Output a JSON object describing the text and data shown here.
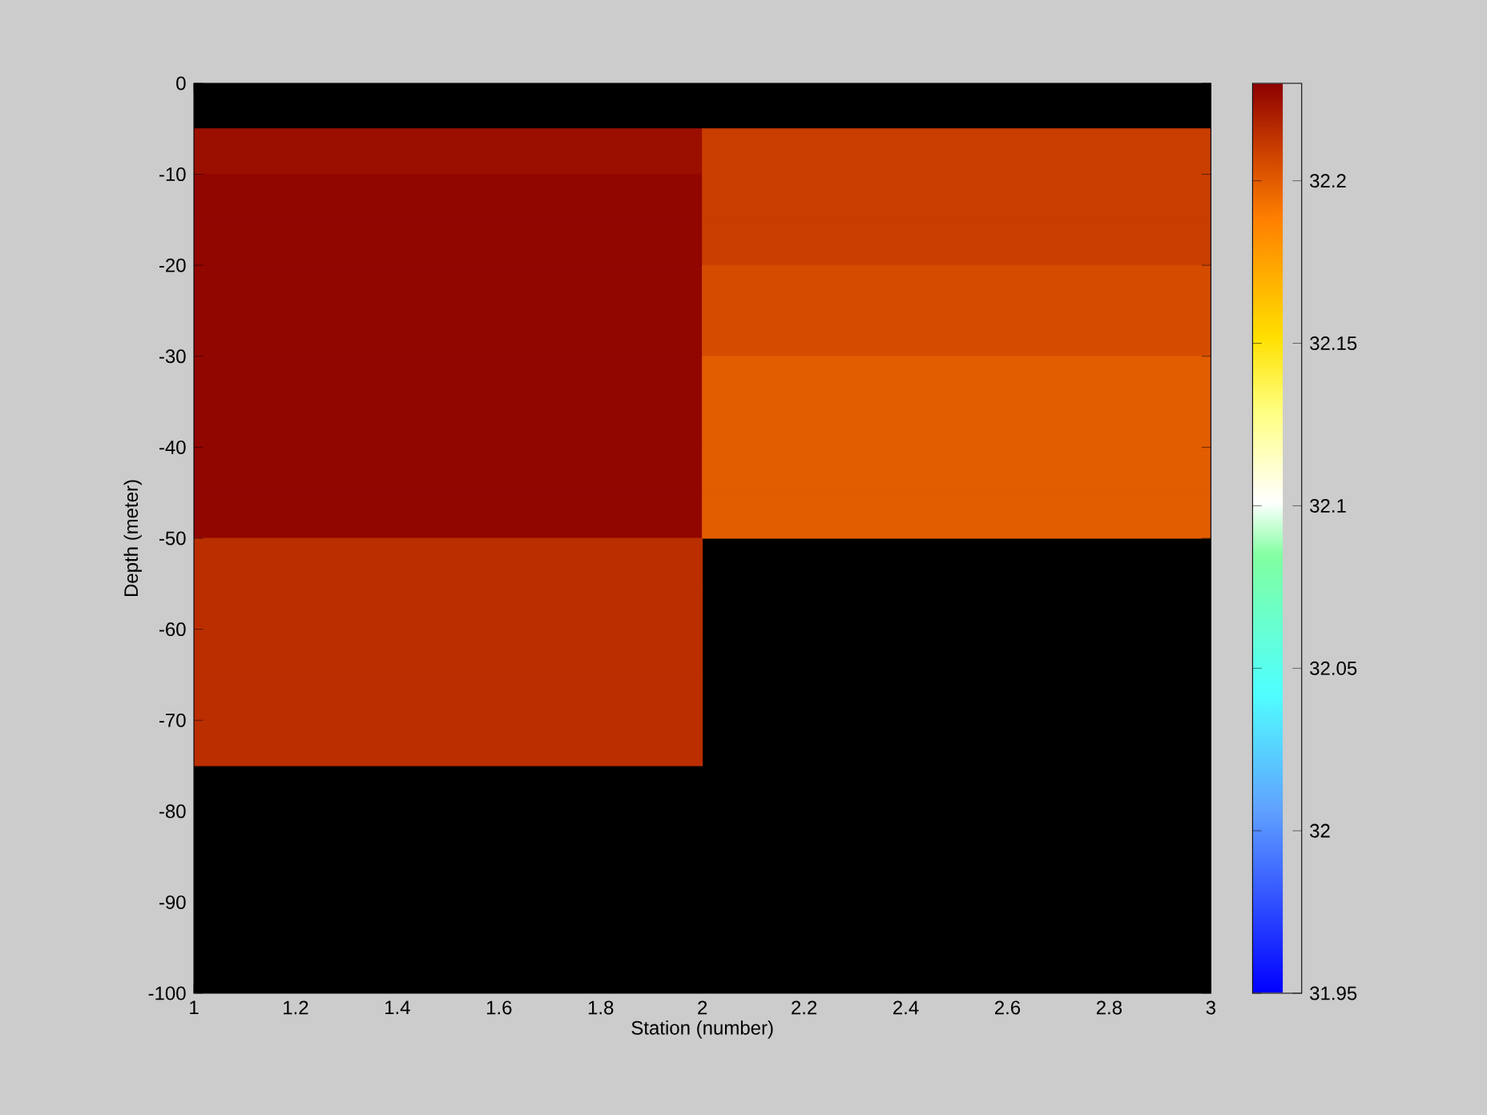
{
  "chart_data": {
    "type": "heatmap",
    "xlabel": "Station (number)",
    "ylabel": "Depth (meter)",
    "x": [
      1.5,
      2.5
    ],
    "y": [
      -7.5,
      -12.5,
      -17.5,
      -22.5,
      -27.5,
      -32.5,
      -37.5,
      -42.5,
      -47.5,
      -52.5,
      -57.5,
      -62.5,
      -67.5,
      -72.5
    ],
    "cells": [
      [
        32.225,
        32.21
      ],
      [
        32.228,
        32.21
      ],
      [
        32.228,
        32.21
      ],
      [
        32.228,
        32.205
      ],
      [
        32.228,
        32.205
      ],
      [
        32.228,
        32.2
      ],
      [
        32.228,
        32.2
      ],
      [
        32.228,
        32.2
      ],
      [
        32.228,
        32.2
      ],
      [
        32.215,
        null
      ],
      [
        32.215,
        null
      ],
      [
        32.215,
        null
      ],
      [
        32.215,
        null
      ],
      [
        32.215,
        null
      ]
    ],
    "xlim": [
      1,
      3
    ],
    "ylim": [
      -100,
      0
    ],
    "xticks": [
      1,
      1.2,
      1.4,
      1.6,
      1.8,
      2,
      2.2,
      2.4,
      2.6,
      2.8,
      3
    ],
    "yticks": [
      -100,
      -90,
      -80,
      -70,
      -60,
      -50,
      -40,
      -30,
      -20,
      -10,
      0
    ],
    "clim": [
      31.95,
      32.23
    ],
    "cticks": [
      31.95,
      32,
      32.05,
      32.1,
      32.15,
      32.2
    ]
  }
}
